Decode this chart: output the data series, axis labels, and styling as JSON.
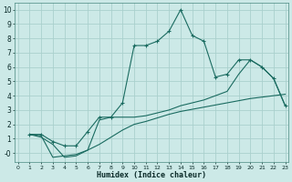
{
  "xlabel": "Humidex (Indice chaleur)",
  "bg_color": "#cce9e7",
  "grid_color": "#aad0cd",
  "line_color": "#1a6b60",
  "xlim": [
    -0.3,
    23.3
  ],
  "ylim": [
    -0.65,
    10.5
  ],
  "xticks": [
    0,
    1,
    2,
    3,
    4,
    5,
    6,
    7,
    8,
    9,
    10,
    11,
    12,
    13,
    14,
    15,
    16,
    17,
    18,
    19,
    20,
    21,
    22,
    23
  ],
  "yticks": [
    0,
    1,
    2,
    3,
    4,
    5,
    6,
    7,
    8,
    9,
    10
  ],
  "line1_x": [
    1,
    2,
    3,
    4,
    5,
    6,
    7,
    8,
    9,
    10,
    11,
    12,
    13,
    14,
    15,
    16,
    17,
    18,
    19,
    20,
    21,
    22,
    23
  ],
  "line1_y": [
    1.3,
    1.3,
    0.8,
    0.5,
    0.5,
    1.5,
    2.5,
    2.5,
    3.5,
    7.5,
    7.5,
    7.8,
    8.5,
    10.0,
    8.2,
    7.8,
    5.3,
    5.5,
    6.5,
    6.5,
    6.0,
    5.2,
    3.3
  ],
  "line2_x": [
    1,
    2,
    3,
    4,
    5,
    6,
    7,
    8,
    9,
    10,
    11,
    12,
    13,
    14,
    15,
    16,
    17,
    18,
    19,
    20,
    21,
    22,
    23
  ],
  "line2_y": [
    1.3,
    1.1,
    0.6,
    -0.3,
    -0.2,
    0.2,
    0.6,
    1.1,
    1.6,
    2.0,
    2.2,
    2.45,
    2.7,
    2.9,
    3.05,
    3.2,
    3.35,
    3.5,
    3.65,
    3.8,
    3.9,
    4.0,
    4.1
  ],
  "line3_x": [
    1,
    2,
    3,
    4,
    5,
    6,
    7,
    8,
    9,
    10,
    11,
    12,
    13,
    14,
    15,
    16,
    17,
    18,
    19,
    20,
    21,
    22,
    23
  ],
  "line3_y": [
    1.3,
    1.2,
    -0.3,
    -0.2,
    -0.1,
    0.2,
    2.3,
    2.5,
    2.5,
    2.5,
    2.6,
    2.8,
    3.0,
    3.3,
    3.5,
    3.7,
    4.0,
    4.3,
    5.5,
    6.5,
    6.0,
    5.2,
    3.3
  ]
}
